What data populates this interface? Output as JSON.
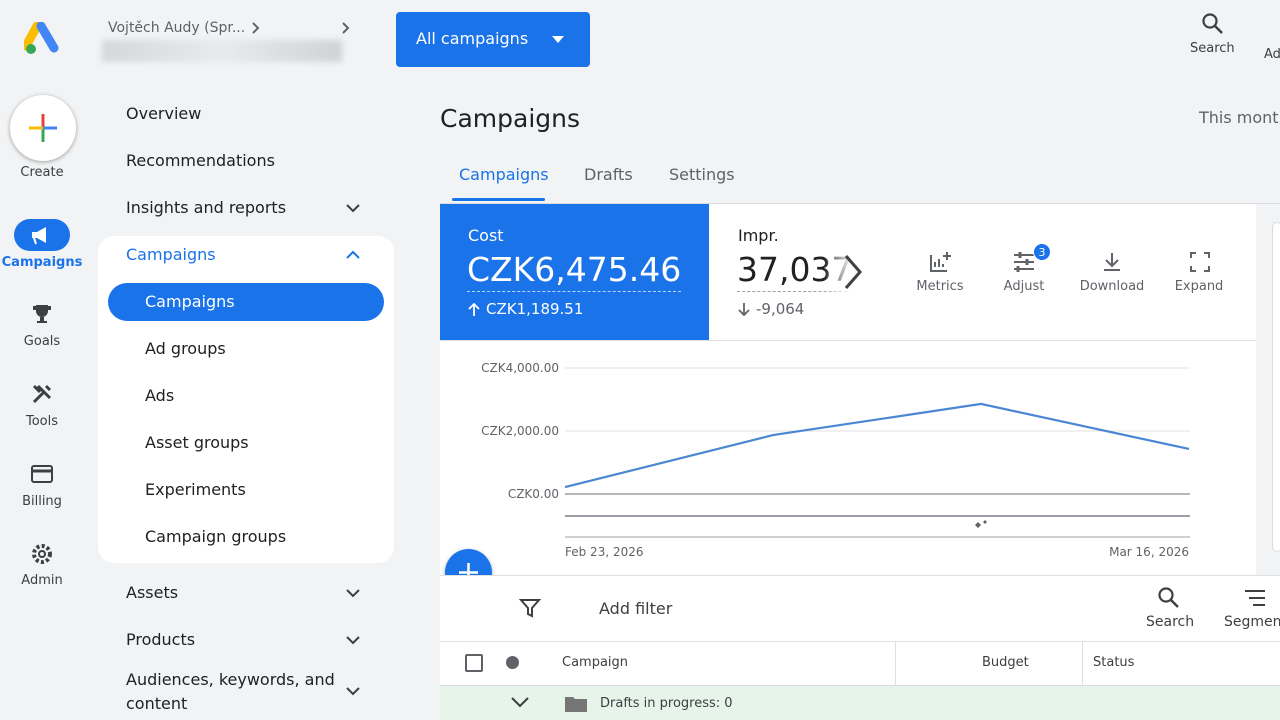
{
  "header": {
    "account_path": "Vojtěch Audy (Spr...",
    "campaign_selector": "All campaigns",
    "search": "Search",
    "truncated_item": "Ad"
  },
  "rail": [
    "Create",
    "Campaigns",
    "Goals",
    "Tools",
    "Billing",
    "Admin"
  ],
  "nav": {
    "items": [
      "Overview",
      "Recommendations",
      "Insights and reports",
      "Campaigns"
    ],
    "campaigns_sub": [
      "Campaigns",
      "Ad groups",
      "Ads",
      "Asset groups",
      "Experiments",
      "Campaign groups"
    ],
    "more": [
      "Assets",
      "Products",
      "Audiences, keywords, and content"
    ]
  },
  "page": {
    "title": "Campaigns",
    "date_range": "This month",
    "tabs": [
      "Campaigns",
      "Drafts",
      "Settings"
    ]
  },
  "metrics": [
    {
      "name": "Cost",
      "value": "CZK6,475.46",
      "change": "CZK1,189.51"
    },
    {
      "name": "Impr.",
      "value": "37,037",
      "change": "-9,064"
    }
  ],
  "toolbar": {
    "items": [
      "Metrics",
      "Adjust",
      "Download",
      "Expand"
    ],
    "adjust_badge": "3"
  },
  "filter": {
    "add_filter": "Add filter",
    "search": "Search",
    "segment": "Segment"
  },
  "table": {
    "columns": [
      "Campaign",
      "Budget",
      "Status"
    ],
    "rows": [
      [
        "Drafts in progress: 0"
      ]
    ]
  },
  "chart_data": {
    "type": "line",
    "categories": [
      "Feb 23, 2026",
      null,
      null,
      "Mar 16, 2026"
    ],
    "values": [
      220,
      1870,
      2860,
      1430
    ],
    "color": "#4a86d4",
    "ylim": [
      0,
      4000
    ],
    "yticks": [
      {
        "value": 0,
        "label": "CZK0.00"
      },
      {
        "value": 2000,
        "label": "CZK2,000.00"
      },
      {
        "value": 4000,
        "label": "CZK4,000.00"
      }
    ],
    "grid": true
  }
}
